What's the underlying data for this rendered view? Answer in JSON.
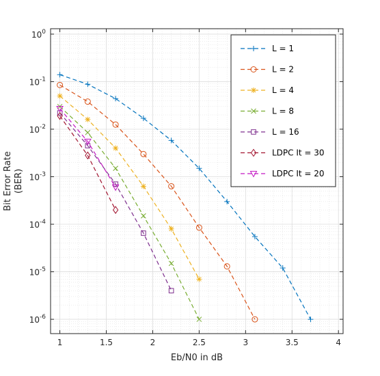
{
  "chart_data": {
    "type": "line",
    "xlabel": "Eb/N0 in dB",
    "ylabel": [
      "Bit Error Rate",
      "(BER)"
    ],
    "xlim": [
      0.9,
      4.05
    ],
    "ylim": [
      5e-07,
      1.3
    ],
    "yscale": "log",
    "xticks": [
      1,
      1.5,
      2,
      2.5,
      3,
      3.5,
      4
    ],
    "xtick_labels": [
      "1",
      "1.5",
      "2",
      "2.5",
      "3",
      "3.5",
      "4"
    ],
    "ytick_exponents": [
      0,
      -1,
      -2,
      -3,
      -4,
      -5,
      -6
    ],
    "ytick_base": "10",
    "grid": true,
    "minor_grid": true,
    "legend_position": "top-right",
    "series": [
      {
        "name": "L = 1",
        "color": "#0072bd",
        "marker": "plus",
        "x": [
          1,
          1.3,
          1.6,
          1.9,
          2.2,
          2.5,
          2.8,
          3.1,
          3.4,
          3.7
        ],
        "y": [
          0.14,
          0.088,
          0.044,
          0.017,
          0.0058,
          0.0015,
          0.0003,
          5.5e-05,
          1.2e-05,
          1e-06
        ]
      },
      {
        "name": "L = 2",
        "color": "#d95319",
        "marker": "circle",
        "x": [
          1,
          1.3,
          1.6,
          1.9,
          2.2,
          2.5,
          2.8,
          3.1
        ],
        "y": [
          0.085,
          0.038,
          0.0125,
          0.003,
          0.00063,
          8.5e-05,
          1.3e-05,
          1e-06
        ]
      },
      {
        "name": "L = 4",
        "color": "#edb120",
        "marker": "asterisk",
        "x": [
          1,
          1.3,
          1.6,
          1.9,
          2.2,
          2.5
        ],
        "y": [
          0.05,
          0.016,
          0.004,
          0.00063,
          8e-05,
          7e-06
        ]
      },
      {
        "name": "L = 8",
        "color": "#77ac30",
        "marker": "x",
        "x": [
          1,
          1.3,
          1.6,
          1.9,
          2.2,
          2.5
        ],
        "y": [
          0.03,
          0.0085,
          0.0015,
          0.00015,
          1.5e-05,
          1e-06
        ]
      },
      {
        "name": "L = 16",
        "color": "#7e2f8e",
        "marker": "square",
        "x": [
          1,
          1.3,
          1.6,
          1.9,
          2.2
        ],
        "y": [
          0.022,
          0.0045,
          0.0007,
          6.5e-05,
          4e-06
        ]
      },
      {
        "name": "LDPC It = 30",
        "color": "#a2142f",
        "marker": "diamond",
        "x": [
          1,
          1.3,
          1.6
        ],
        "y": [
          0.019,
          0.0028,
          0.0002
        ]
      },
      {
        "name": "LDPC It = 20",
        "color": "#c418c4",
        "marker": "triangle-down",
        "x": [
          1,
          1.3,
          1.6
        ],
        "y": [
          0.027,
          0.0055,
          0.0006
        ]
      }
    ]
  }
}
